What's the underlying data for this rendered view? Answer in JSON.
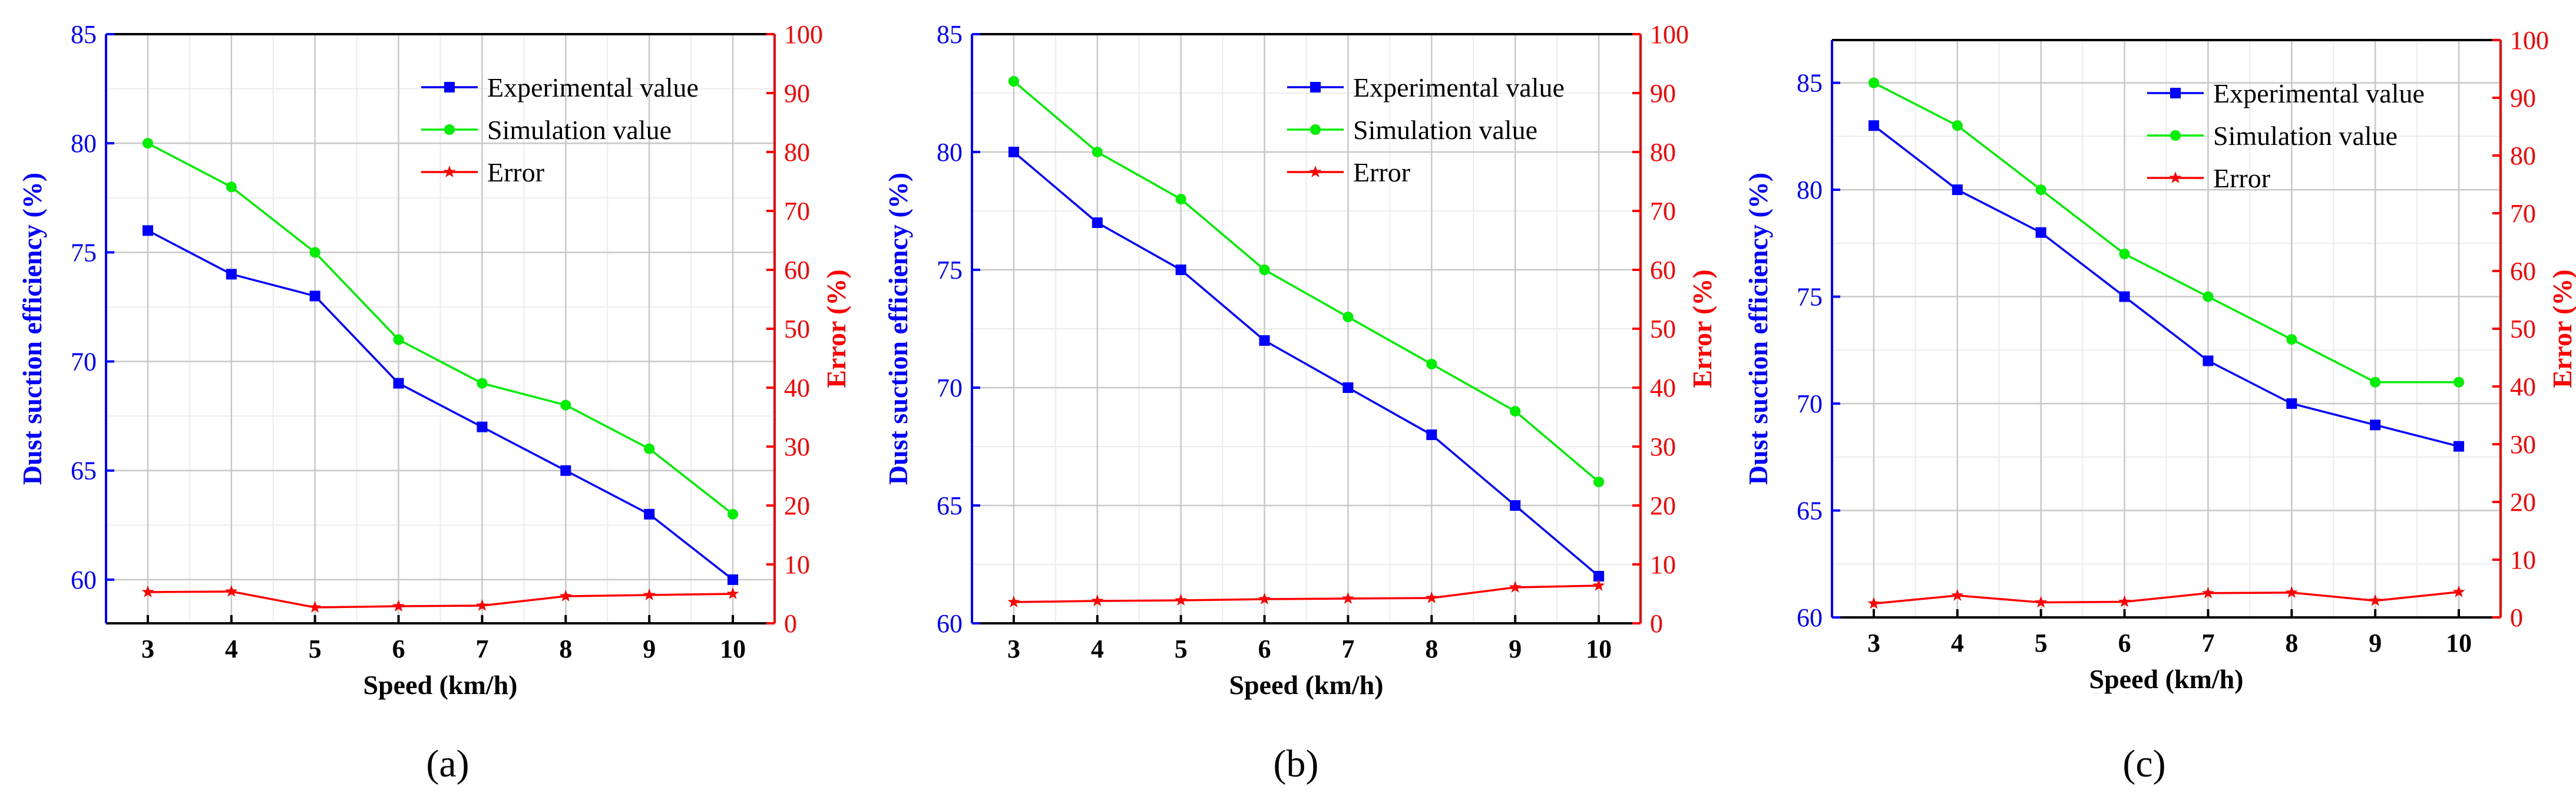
{
  "chart_data": [
    {
      "panel_label": "(a)",
      "type": "line",
      "xlabel": "Speed (km/h)",
      "ylabel": "Dust suction efficiency (%)",
      "y2label": "Error (%)",
      "x": [
        3,
        4,
        5,
        6,
        7,
        8,
        9,
        10
      ],
      "ylim": [
        58,
        85
      ],
      "yticks": [
        60,
        65,
        70,
        75,
        80,
        85
      ],
      "y2lim": [
        0,
        100
      ],
      "y2ticks": [
        0,
        10,
        20,
        30,
        40,
        50,
        60,
        70,
        80,
        90,
        100
      ],
      "series": [
        {
          "name": "Experimental value",
          "axis": "left",
          "color": "#0000ff",
          "marker": "square",
          "values": [
            76,
            74,
            73,
            69,
            67,
            65,
            63,
            60
          ]
        },
        {
          "name": "Simulation value",
          "axis": "left",
          "color": "#00ee00",
          "marker": "circle",
          "values": [
            80,
            78,
            75,
            71,
            69,
            68,
            66,
            63
          ]
        },
        {
          "name": "Error",
          "axis": "right",
          "color": "#ff0000",
          "marker": "star",
          "values": [
            5.3,
            5.4,
            2.7,
            2.9,
            3.0,
            4.6,
            4.8,
            5.0
          ]
        }
      ]
    },
    {
      "panel_label": "(b)",
      "type": "line",
      "xlabel": "Speed (km/h)",
      "ylabel": "Dust suction efficiency (%)",
      "y2label": "Error (%)",
      "x": [
        3,
        4,
        5,
        6,
        7,
        8,
        9,
        10
      ],
      "ylim": [
        60,
        85
      ],
      "yticks": [
        60,
        65,
        70,
        75,
        80,
        85
      ],
      "y2lim": [
        0,
        100
      ],
      "y2ticks": [
        0,
        10,
        20,
        30,
        40,
        50,
        60,
        70,
        80,
        90,
        100
      ],
      "series": [
        {
          "name": "Experimental value",
          "axis": "left",
          "color": "#0000ff",
          "marker": "square",
          "values": [
            80,
            77,
            75,
            72,
            70,
            68,
            65,
            62
          ]
        },
        {
          "name": "Simulation value",
          "axis": "left",
          "color": "#00ee00",
          "marker": "circle",
          "values": [
            83,
            80,
            78,
            75,
            73,
            71,
            69,
            66
          ]
        },
        {
          "name": "Error",
          "axis": "right",
          "color": "#ff0000",
          "marker": "star",
          "values": [
            3.6,
            3.8,
            3.9,
            4.1,
            4.2,
            4.3,
            6.1,
            6.4
          ]
        }
      ]
    },
    {
      "panel_label": "(c)",
      "type": "line",
      "xlabel": "Speed (km/h)",
      "ylabel": "Dust suction efficiency (%)",
      "y2label": "Error (%)",
      "x": [
        3,
        4,
        5,
        6,
        7,
        8,
        9,
        10
      ],
      "ylim": [
        60,
        87
      ],
      "yticks": [
        60,
        65,
        70,
        75,
        80,
        85
      ],
      "y2lim": [
        0,
        100
      ],
      "y2ticks": [
        0,
        10,
        20,
        30,
        40,
        50,
        60,
        70,
        80,
        90,
        100
      ],
      "series": [
        {
          "name": "Experimental value",
          "axis": "left",
          "color": "#0000ff",
          "marker": "square",
          "values": [
            83,
            80,
            78,
            75,
            72,
            70,
            69,
            68
          ]
        },
        {
          "name": "Simulation value",
          "axis": "left",
          "color": "#00ee00",
          "marker": "circle",
          "values": [
            85,
            83,
            80,
            77,
            75,
            73,
            71,
            71
          ]
        },
        {
          "name": "Error",
          "axis": "right",
          "color": "#ff0000",
          "marker": "star",
          "values": [
            2.4,
            3.8,
            2.6,
            2.7,
            4.2,
            4.3,
            2.9,
            4.4
          ]
        }
      ]
    }
  ],
  "colors": {
    "left_axis": "#0000ff",
    "right_axis": "#ff0000",
    "grid": "#c8c8c8",
    "minor_grid": "#ececec"
  }
}
